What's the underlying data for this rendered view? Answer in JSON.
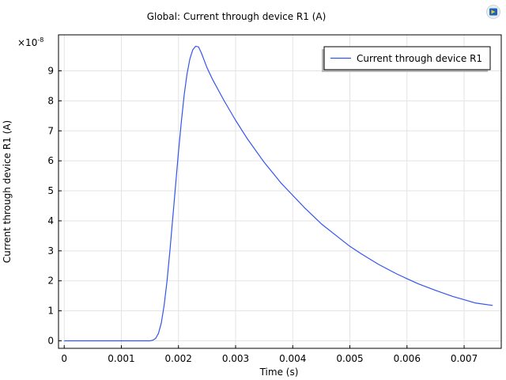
{
  "app": {
    "logo_icon": "comsol-logo-icon"
  },
  "chart_data": {
    "type": "line",
    "title": "Global: Current through device R1 (A)",
    "xlabel": "Time (s)",
    "ylabel": "Current through device R1 (A)",
    "y_multiplier_label": "×10",
    "y_multiplier_exponent": "-8",
    "xlim": [
      -0.0001,
      0.00765
    ],
    "ylim": [
      -0.25,
      10.2
    ],
    "x_ticks": [
      0,
      0.001,
      0.002,
      0.003,
      0.004,
      0.005,
      0.006,
      0.007
    ],
    "x_tick_labels": [
      "0",
      "0.001",
      "0.002",
      "0.003",
      "0.004",
      "0.005",
      "0.006",
      "0.007"
    ],
    "y_ticks": [
      0,
      1,
      2,
      3,
      4,
      5,
      6,
      7,
      8,
      9
    ],
    "y_tick_labels": [
      "0",
      "1",
      "2",
      "3",
      "4",
      "5",
      "6",
      "7",
      "8",
      "9"
    ],
    "grid": true,
    "legend_position": "top-right",
    "colors": {
      "series": "#3355ee",
      "grid": "#e3e3e3"
    },
    "series": [
      {
        "name": "Current through device R1",
        "x": [
          0,
          0.0005,
          0.001,
          0.0015,
          0.00155,
          0.0016,
          0.00165,
          0.0017,
          0.00175,
          0.0018,
          0.00185,
          0.0019,
          0.00195,
          0.002,
          0.00205,
          0.0021,
          0.00215,
          0.0022,
          0.00225,
          0.0023,
          0.00235,
          0.0024,
          0.00245,
          0.0025,
          0.0026,
          0.0027,
          0.0028,
          0.003,
          0.0032,
          0.0035,
          0.0038,
          0.004,
          0.0042,
          0.0045,
          0.0048,
          0.005,
          0.0052,
          0.0055,
          0.0058,
          0.006,
          0.0062,
          0.0065,
          0.0068,
          0.007,
          0.0072,
          0.0075
        ],
        "y": [
          0,
          0,
          0,
          0,
          0.02,
          0.08,
          0.25,
          0.6,
          1.2,
          2.0,
          3.0,
          4.1,
          5.2,
          6.3,
          7.3,
          8.2,
          8.9,
          9.4,
          9.7,
          9.82,
          9.8,
          9.6,
          9.35,
          9.1,
          8.7,
          8.35,
          8.0,
          7.35,
          6.75,
          5.95,
          5.25,
          4.85,
          4.45,
          3.9,
          3.45,
          3.15,
          2.9,
          2.55,
          2.25,
          2.07,
          1.9,
          1.68,
          1.48,
          1.37,
          1.26,
          1.18
        ]
      }
    ]
  }
}
